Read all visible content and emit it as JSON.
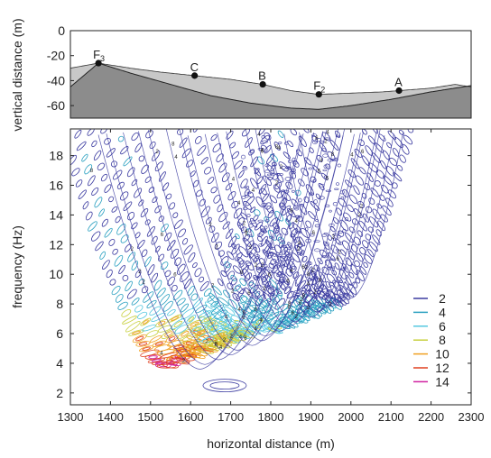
{
  "chart_data": [
    {
      "type": "area",
      "ylabel": "vertical distance (m)",
      "xlim": [
        1300,
        2300
      ],
      "ylim": [
        -70,
        0
      ],
      "y_ticks": [
        "0",
        "-20",
        "-40",
        "-60"
      ],
      "surface_x": [
        1300,
        1370,
        1450,
        1520,
        1610,
        1700,
        1780,
        1850,
        1920,
        2000,
        2080,
        2120,
        2200,
        2260,
        2300
      ],
      "surface_y": [
        -30,
        -26,
        -30,
        -33,
        -36,
        -39,
        -43,
        -48,
        -51,
        -50,
        -49,
        -48,
        -46,
        -43,
        -45
      ],
      "bedrock_x": [
        1300,
        1370,
        1450,
        1550,
        1650,
        1750,
        1850,
        1920,
        2000,
        2100,
        2200,
        2300
      ],
      "bedrock_y": [
        -45,
        -26,
        -34,
        -43,
        -52,
        -58,
        -62,
        -63,
        -60,
        -55,
        -49,
        -44
      ],
      "colors": {
        "fill_lower": "#8c8c8c",
        "fill_upper": "#c8c8c8"
      },
      "points": [
        {
          "label": "F",
          "sub": "3",
          "x": 1370,
          "y": -26
        },
        {
          "label": "C",
          "sub": "",
          "x": 1610,
          "y": -36
        },
        {
          "label": "B",
          "sub": "",
          "x": 1780,
          "y": -43
        },
        {
          "label": "F",
          "sub": "2",
          "x": 1920,
          "y": -51
        },
        {
          "label": "A",
          "sub": "",
          "x": 2120,
          "y": -48
        }
      ]
    },
    {
      "type": "heatmap",
      "xlabel": "horizontal distance (m)",
      "ylabel": "frequency (Hz)",
      "xlim": [
        1300,
        2300
      ],
      "ylim": [
        1.2,
        19.8
      ],
      "x_ticks": [
        "1300",
        "1400",
        "1500",
        "1600",
        "1700",
        "1800",
        "1900",
        "2000",
        "2100",
        "2200",
        "2300"
      ],
      "y_ticks": [
        "2",
        "4",
        "6",
        "8",
        "10",
        "12",
        "14",
        "16",
        "18"
      ],
      "legend": {
        "position": "lower-right",
        "levels": [
          {
            "value": 2,
            "label": "2",
            "color": "#3a3aa0"
          },
          {
            "value": 4,
            "label": "4",
            "color": "#2aa0c0"
          },
          {
            "value": 6,
            "label": "6",
            "color": "#55c8e0"
          },
          {
            "value": 8,
            "label": "8",
            "color": "#c8d040"
          },
          {
            "value": 10,
            "label": "10",
            "color": "#f0a020"
          },
          {
            "value": 12,
            "label": "12",
            "color": "#e04020"
          },
          {
            "value": 14,
            "label": "14",
            "color": "#d020a0"
          }
        ]
      }
    }
  ]
}
